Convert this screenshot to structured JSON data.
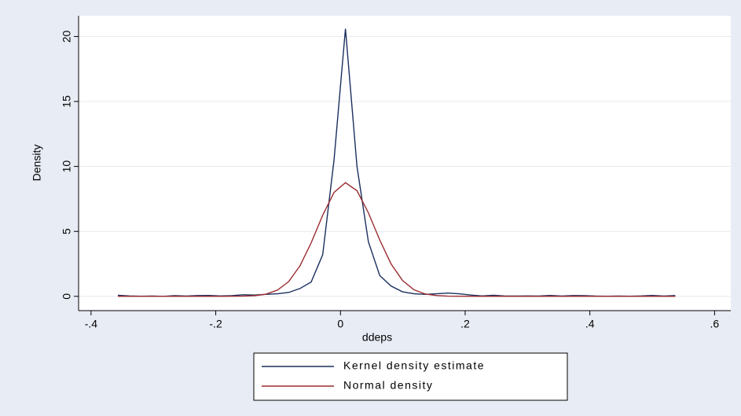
{
  "chart_data": {
    "type": "line",
    "x_label": "ddeps",
    "y_label": "Density",
    "x": [
      -0.357,
      -0.339,
      -0.32,
      -0.302,
      -0.284,
      -0.266,
      -0.247,
      -0.229,
      -0.211,
      -0.193,
      -0.1745,
      -0.156,
      -0.138,
      -0.12,
      -0.101,
      -0.083,
      -0.065,
      -0.047,
      -0.0285,
      -0.0103,
      0.008,
      0.0265,
      0.0448,
      0.063,
      0.081,
      0.0995,
      0.118,
      0.136,
      0.154,
      0.172,
      0.19,
      0.209,
      0.227,
      0.245,
      0.263,
      0.282,
      0.3,
      0.318,
      0.336,
      0.355,
      0.373,
      0.391,
      0.409,
      0.428,
      0.446,
      0.464,
      0.482,
      0.5,
      0.519,
      0.537
    ],
    "series": [
      {
        "name": "Kernel density estimate",
        "color": "#1a2f5e",
        "values": [
          0.08,
          0.03,
          0.01,
          0.02,
          0.0,
          0.05,
          0.02,
          0.06,
          0.07,
          0.03,
          0.05,
          0.12,
          0.1,
          0.15,
          0.2,
          0.3,
          0.6,
          1.1,
          3.2,
          10.5,
          20.6,
          10.0,
          4.2,
          1.6,
          0.8,
          0.35,
          0.2,
          0.15,
          0.2,
          0.25,
          0.2,
          0.1,
          0.03,
          0.08,
          0.03,
          0.02,
          0.03,
          0.02,
          0.07,
          0.02,
          0.06,
          0.05,
          0.02,
          0.01,
          0.02,
          0.01,
          0.03,
          0.07,
          0.02,
          0.06
        ]
      },
      {
        "name": "Normal density",
        "color": "#9b2b2f",
        "values": [
          0,
          0,
          0,
          0,
          0,
          0,
          0,
          0,
          0,
          0,
          0.01,
          0.013,
          0.05,
          0.16,
          0.48,
          1.14,
          2.34,
          4.12,
          6.24,
          8.0,
          8.75,
          8.13,
          6.43,
          4.34,
          2.51,
          1.22,
          0.5,
          0.18,
          0.06,
          0.015,
          0.01,
          0,
          0,
          0,
          0,
          0,
          0,
          0,
          0,
          0,
          0,
          0,
          0,
          0,
          0,
          0,
          0,
          0,
          0,
          0
        ]
      }
    ],
    "xlim": [
      -0.42,
      0.626
    ],
    "ylim": [
      -1.1,
      21.6
    ],
    "xticks": [
      {
        "value": -0.4,
        "label": "-.4"
      },
      {
        "value": -0.2,
        "label": "-.2"
      },
      0,
      {
        "value": 0.2,
        "label": ".2"
      },
      {
        "value": 0.4,
        "label": ".4"
      },
      {
        "value": 0.6,
        "label": ".6"
      }
    ],
    "yticks": [
      0,
      5,
      10,
      15,
      20
    ],
    "grid": true
  }
}
